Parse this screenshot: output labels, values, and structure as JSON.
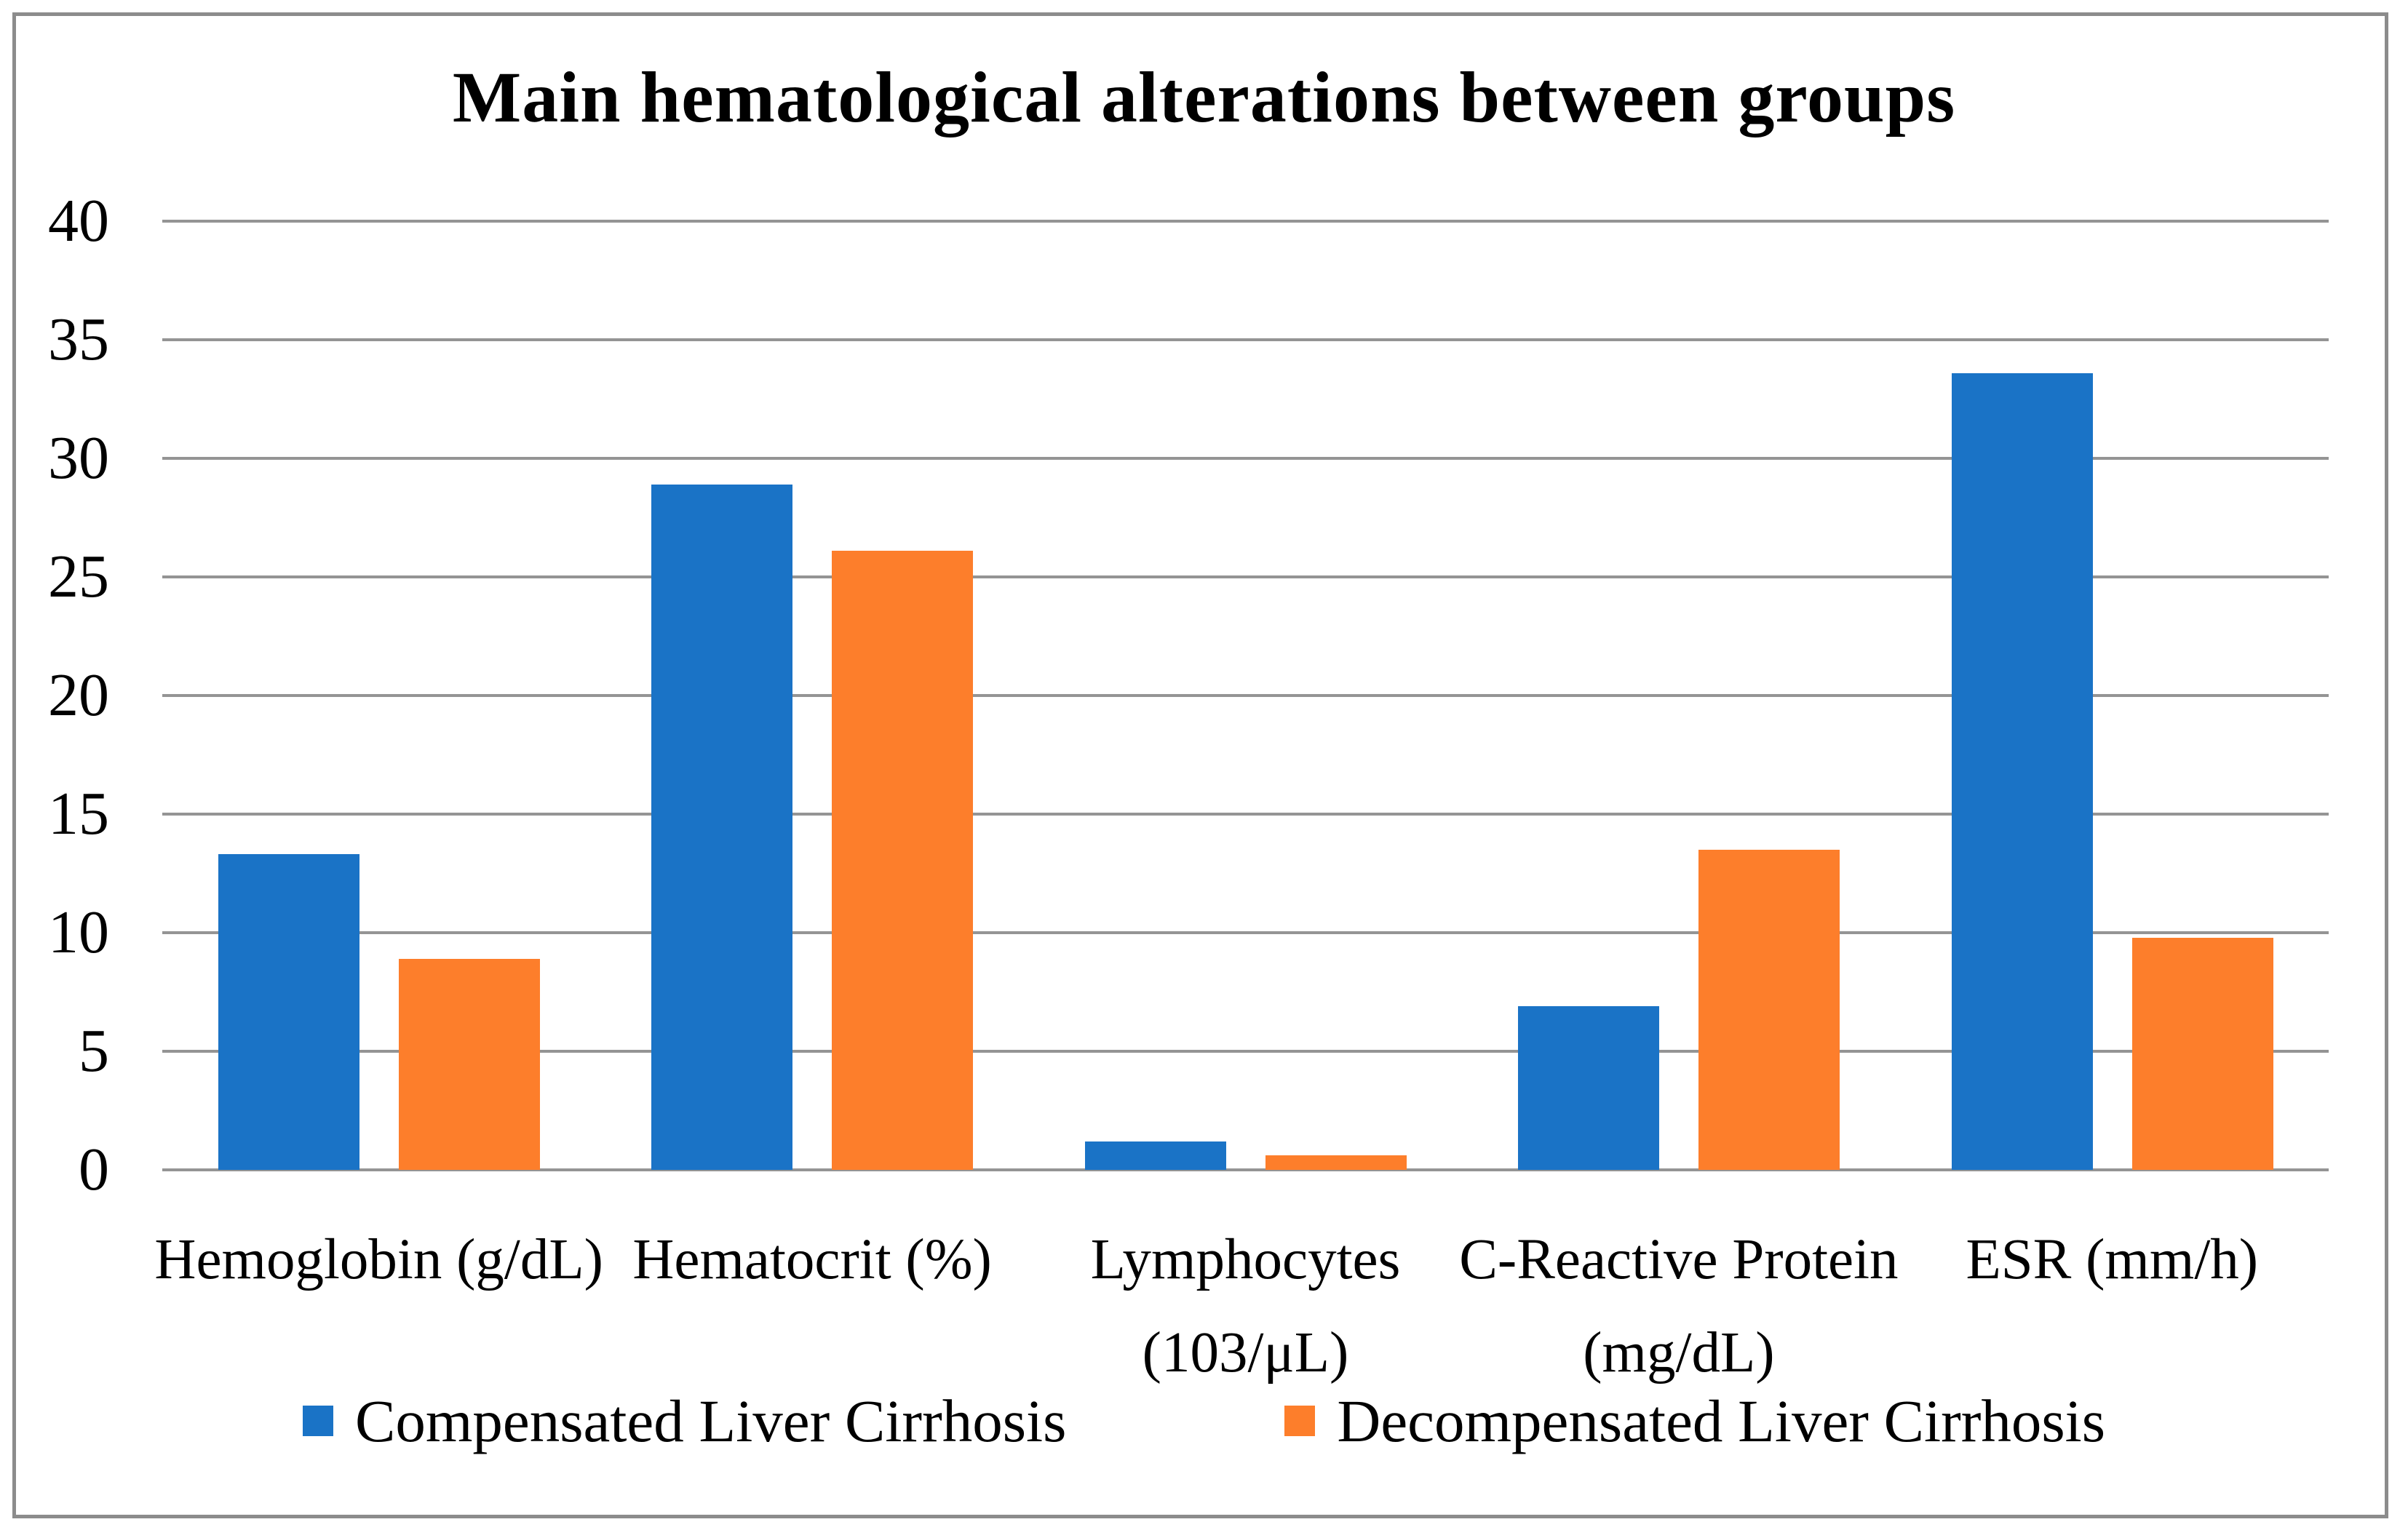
{
  "chart_data": {
    "type": "bar",
    "title": "Main hematological alterations between groups",
    "categories": [
      "Hemoglobin (g/dL)",
      "Hematocrit (%)",
      "Lymphocytes (103/μL)",
      "C-Reactive Protein (mg/dL)",
      "ESR (mm/h)"
    ],
    "category_label_lines": [
      [
        "Hemoglobin (g/dL)"
      ],
      [
        "Hematocrit (%)"
      ],
      [
        "Lymphocytes",
        "(103/μL)"
      ],
      [
        "C-Reactive Protein",
        "(mg/dL)"
      ],
      [
        "ESR (mm/h)"
      ]
    ],
    "series": [
      {
        "name": "Compensated Liver Cirrhosis",
        "color": "#1a73c6",
        "values": [
          13.3,
          28.9,
          1.2,
          6.9,
          33.6
        ]
      },
      {
        "name": "Decompensated Liver Cirrhosis",
        "color": "#fd7e2b",
        "values": [
          8.9,
          26.1,
          0.6,
          13.5,
          9.8
        ]
      }
    ],
    "xlabel": "",
    "ylabel": "",
    "ylim": [
      0,
      40
    ],
    "yticks": [
      0,
      5,
      10,
      15,
      20,
      25,
      30,
      35,
      40
    ],
    "grid": true,
    "legend_position": "bottom",
    "gridline_color": "#949494",
    "frame_color": "#8c8c8c",
    "background_color": "#ffffff",
    "text_color": "#000000"
  }
}
